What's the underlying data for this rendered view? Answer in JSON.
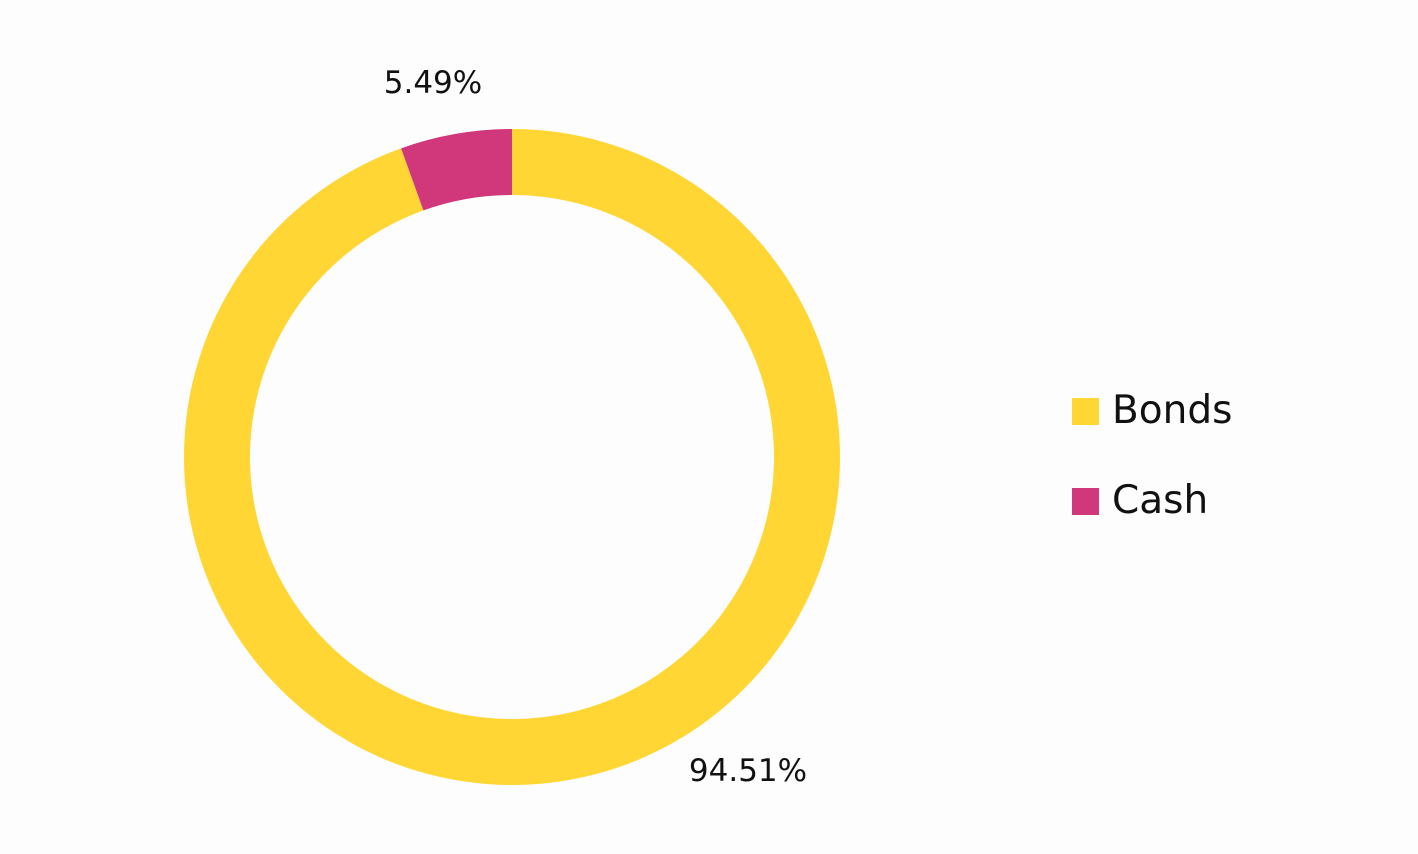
{
  "chart_data": {
    "type": "pie",
    "variant": "donut",
    "series": [
      {
        "name": "Bonds",
        "value": 94.51,
        "label": "94.51%",
        "color": "#ffd633"
      },
      {
        "name": "Cash",
        "value": 5.49,
        "label": "5.49%",
        "color": "#d1377b"
      }
    ],
    "start_angle": "12 o'clock",
    "direction": "clockwise",
    "legend_placement": "right"
  }
}
